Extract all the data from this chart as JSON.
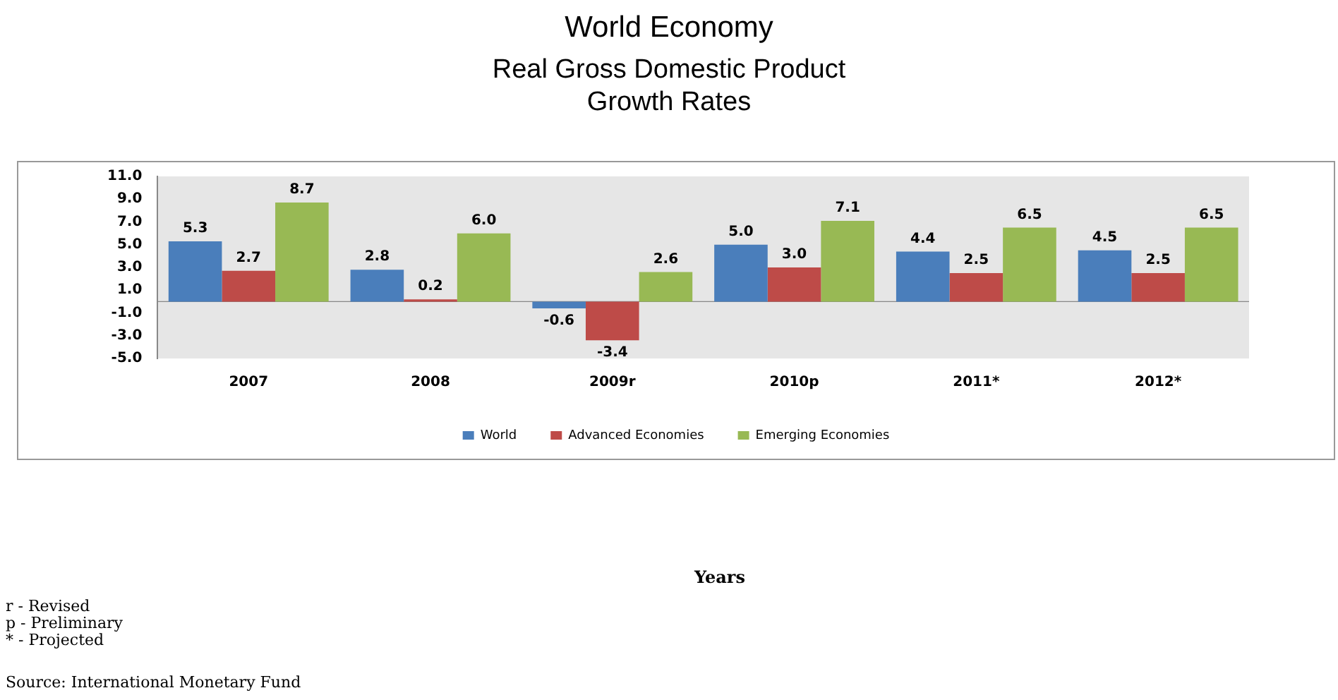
{
  "chart_data": {
    "type": "bar",
    "title": "World Economy",
    "subtitle": "Real Gross Domestic Product\nGrowth Rates",
    "categories": [
      "2007",
      "2008",
      "2009r",
      "2010p",
      "2011*",
      "2012*"
    ],
    "series": [
      {
        "name": "World",
        "color": "#4a7ebb",
        "values": [
          5.3,
          2.8,
          -0.6,
          5.0,
          4.4,
          4.5
        ],
        "value_labels": [
          "5.3",
          "2.8",
          "-0.6",
          "5.0",
          "4.4",
          "4.5"
        ]
      },
      {
        "name": "Advanced Economies",
        "color": "#be4b48",
        "values": [
          2.7,
          0.2,
          -3.4,
          3.0,
          2.5,
          2.5
        ],
        "value_labels": [
          "2.7",
          "0.2",
          "-3.4",
          "3.0",
          "2.5",
          "2.5"
        ]
      },
      {
        "name": "Emerging Economies",
        "color": "#98b954",
        "values": [
          8.7,
          6.0,
          2.6,
          7.1,
          6.5,
          6.5
        ],
        "value_labels": [
          "8.7",
          "6.0",
          "2.6",
          "7.1",
          "6.5",
          "6.5"
        ]
      }
    ],
    "ylim": [
      -5,
      11
    ],
    "yticks": [
      {
        "value": -5,
        "label": "-5.0"
      },
      {
        "value": -3,
        "label": "-3.0"
      },
      {
        "value": -1,
        "label": "-1.0"
      },
      {
        "value": 1,
        "label": "1.0"
      },
      {
        "value": 3,
        "label": "3.0"
      },
      {
        "value": 5,
        "label": "5.0"
      },
      {
        "value": 7,
        "label": "7.0"
      },
      {
        "value": 9,
        "label": "9.0"
      },
      {
        "value": 11,
        "label": "11.0"
      }
    ],
    "grid": false,
    "legend": "bottom",
    "annotations": [
      "Years",
      "r - Revised",
      "p - Preliminary",
      "* - Projected",
      "Source: International Monetary Fund"
    ]
  }
}
